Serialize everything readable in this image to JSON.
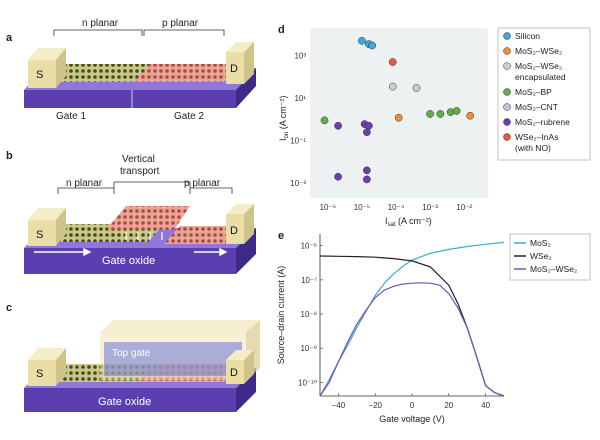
{
  "panels": {
    "a": "a",
    "b": "b",
    "c": "c",
    "d": "d",
    "e": "e"
  },
  "panel_a": {
    "region_n": "n planar",
    "region_p": "p planar",
    "contact_s": "S",
    "contact_d": "D",
    "gate1": "Gate 1",
    "gate2": "Gate 2"
  },
  "panel_b": {
    "region_n": "n planar",
    "region_p": "p planar",
    "vertical": "Vertical",
    "transport": "transport",
    "contact_s": "S",
    "contact_d": "D",
    "oxide": "Gate oxide"
  },
  "panel_c": {
    "top_gate": "Top gate",
    "contact_s": "S",
    "contact_d": "D",
    "oxide": "Gate oxide"
  },
  "colors": {
    "substrate": "#5b3fb0",
    "substrate_top": "#8f78d8",
    "contact": "#e9dfa6",
    "lattice_n": "#5a5a1a",
    "lattice_p": "#c96a5a",
    "topgate": "#efe4b4"
  },
  "chart_data": [
    {
      "type": "scatter",
      "title": "",
      "xlabel_main": "I",
      "xlabel_sub": "sat",
      "xlabel_unit": " (A cm⁻²)",
      "ylabel_main": "I",
      "ylabel_sub": "on",
      "ylabel_unit": " (A cm⁻²)",
      "xscale": "log",
      "yscale": "log",
      "xlim": [
        3e-07,
        0.05
      ],
      "ylim": [
        0.0002,
        20000
      ],
      "x_ticks": [
        {
          "v": 1e-06,
          "label": "10⁻⁶"
        },
        {
          "v": 1e-05,
          "label": "10⁻⁵"
        },
        {
          "v": 0.0001,
          "label": "10⁻⁴"
        },
        {
          "v": 0.001,
          "label": "10⁻³"
        },
        {
          "v": 0.01,
          "label": "10⁻²"
        }
      ],
      "y_ticks": [
        {
          "v": 0.001,
          "label": "10⁻³"
        },
        {
          "v": 0.1,
          "label": "10⁻¹"
        },
        {
          "v": 10,
          "label": "10¹"
        },
        {
          "v": 1000,
          "label": "10³"
        }
      ],
      "series": [
        {
          "name": "Silicon",
          "color": "#3aa9df",
          "points": [
            [
              1e-05,
              5000
            ],
            [
              1.6e-05,
              3500
            ],
            [
              2e-05,
              3000
            ]
          ]
        },
        {
          "name": "MoS₂–WSe₂",
          "color": "#ef8d3b",
          "points": [
            [
              0.00012,
              1.2
            ],
            [
              0.015,
              1.5
            ]
          ]
        },
        {
          "name": "MoS₂–WSe₂ encapsulated",
          "color": "#cfcfc4",
          "points": [
            [
              8e-05,
              35
            ],
            [
              0.0004,
              30
            ]
          ]
        },
        {
          "name": "MoS₂–BP",
          "color": "#5fae4a",
          "points": [
            [
              8e-07,
              0.9
            ],
            [
              0.001,
              1.8
            ],
            [
              0.002,
              1.8
            ],
            [
              0.004,
              2.2
            ],
            [
              0.006,
              2.5
            ]
          ]
        },
        {
          "name": "MoS₂–CNT",
          "color": "#b9c7d6",
          "points": []
        },
        {
          "name": "MoS₂–rubrene",
          "color": "#6a3fae",
          "points": [
            [
              2e-06,
              0.5
            ],
            [
              1.2e-05,
              0.6
            ],
            [
              1.6e-05,
              0.5
            ],
            [
              1.4e-05,
              0.25
            ],
            [
              1.4e-05,
              0.004
            ],
            [
              2e-06,
              0.002
            ],
            [
              1.4e-05,
              0.0015
            ]
          ]
        },
        {
          "name": "WSe₂–InAs (with NO)",
          "color": "#e25a3a",
          "points": [
            [
              8e-05,
              500
            ]
          ]
        }
      ],
      "legend": [
        {
          "name_main": "Silicon",
          "color": "#3aa9df"
        },
        {
          "name_main": "MoS₂–WSe₂",
          "color": "#ef8d3b"
        },
        {
          "name_main": "MoS₂–WSe₂",
          "name_extra": "encapsulated",
          "color": "#cfcfc4"
        },
        {
          "name_main": "MoS₂–BP",
          "color": "#5fae4a"
        },
        {
          "name_main": "MoS₂–CNT",
          "color": "#b9c7d6"
        },
        {
          "name_main": "MoS₂–rubrene",
          "color": "#6a3fae"
        },
        {
          "name_main": "WSe₂–InAs",
          "name_extra": "(with NO)",
          "color": "#e25a3a"
        }
      ],
      "legend_position": "right"
    },
    {
      "type": "line",
      "title": "",
      "xlabel": "Gate voltage (V)",
      "ylabel": "Source–drain current (A)",
      "yscale": "log",
      "xlim": [
        -50,
        50
      ],
      "ylim": [
        4e-11,
        2.2e-06
      ],
      "x_ticks": [
        {
          "v": -40,
          "label": "−40"
        },
        {
          "v": -20,
          "label": "−20"
        },
        {
          "v": 0,
          "label": "0"
        },
        {
          "v": 20,
          "label": "20"
        },
        {
          "v": 40,
          "label": "40"
        }
      ],
      "y_ticks": [
        {
          "v": 1e-10,
          "label": "10⁻¹⁰"
        },
        {
          "v": 1e-09,
          "label": "10⁻⁹"
        },
        {
          "v": 1e-08,
          "label": "10⁻⁸"
        },
        {
          "v": 1e-07,
          "label": "10⁻⁷"
        },
        {
          "v": 1e-06,
          "label": "10⁻⁶"
        }
      ],
      "series": [
        {
          "name": "MoS₂",
          "color": "#3aaad8",
          "points": [
            [
              -50,
              4e-11
            ],
            [
              -45,
              1.2e-10
            ],
            [
              -40,
              4e-10
            ],
            [
              -35,
              1.2e-09
            ],
            [
              -30,
              4e-09
            ],
            [
              -25,
              1.2e-08
            ],
            [
              -20,
              3.5e-08
            ],
            [
              -15,
              8e-08
            ],
            [
              -10,
              1.5e-07
            ],
            [
              -5,
              2.5e-07
            ],
            [
              0,
              3.8e-07
            ],
            [
              10,
              6e-07
            ],
            [
              20,
              7.8e-07
            ],
            [
              30,
              9.5e-07
            ],
            [
              40,
              1.1e-06
            ],
            [
              50,
              1.25e-06
            ]
          ]
        },
        {
          "name": "WSe₂",
          "color": "#222222",
          "points": [
            [
              -50,
              5e-07
            ],
            [
              -40,
              4.9e-07
            ],
            [
              -30,
              4.8e-07
            ],
            [
              -20,
              4.6e-07
            ],
            [
              -10,
              4.2e-07
            ],
            [
              0,
              3.6e-07
            ],
            [
              10,
              2.4e-07
            ],
            [
              20,
              7e-08
            ],
            [
              25,
              2e-08
            ],
            [
              30,
              4e-09
            ],
            [
              35,
              6e-10
            ],
            [
              40,
              8e-11
            ],
            [
              45,
              5e-11
            ],
            [
              50,
              4e-11
            ]
          ]
        },
        {
          "name": "MoS₂–WSe₂",
          "color": "#7b4fb8",
          "points": [
            [
              -50,
              4e-11
            ],
            [
              -45,
              1e-10
            ],
            [
              -40,
              4e-10
            ],
            [
              -35,
              1.5e-09
            ],
            [
              -30,
              5e-09
            ],
            [
              -25,
              1.3e-08
            ],
            [
              -20,
              3e-08
            ],
            [
              -15,
              5e-08
            ],
            [
              -10,
              6.5e-08
            ],
            [
              -5,
              7.5e-08
            ],
            [
              0,
              8e-08
            ],
            [
              5,
              8.2e-08
            ],
            [
              10,
              8e-08
            ],
            [
              15,
              7e-08
            ],
            [
              20,
              4e-08
            ],
            [
              25,
              1.5e-08
            ],
            [
              30,
              4e-09
            ],
            [
              35,
              6e-10
            ],
            [
              40,
              8e-11
            ],
            [
              45,
              5e-11
            ],
            [
              50,
              4e-11
            ]
          ]
        }
      ],
      "legend": [
        {
          "name_main": "MoS₂",
          "color": "#3aaad8"
        },
        {
          "name_main": "WSe₂",
          "color": "#222222"
        },
        {
          "name_main": "MoS₂–WSe₂",
          "color": "#7b4fb8"
        }
      ],
      "legend_position": "top-right"
    }
  ]
}
